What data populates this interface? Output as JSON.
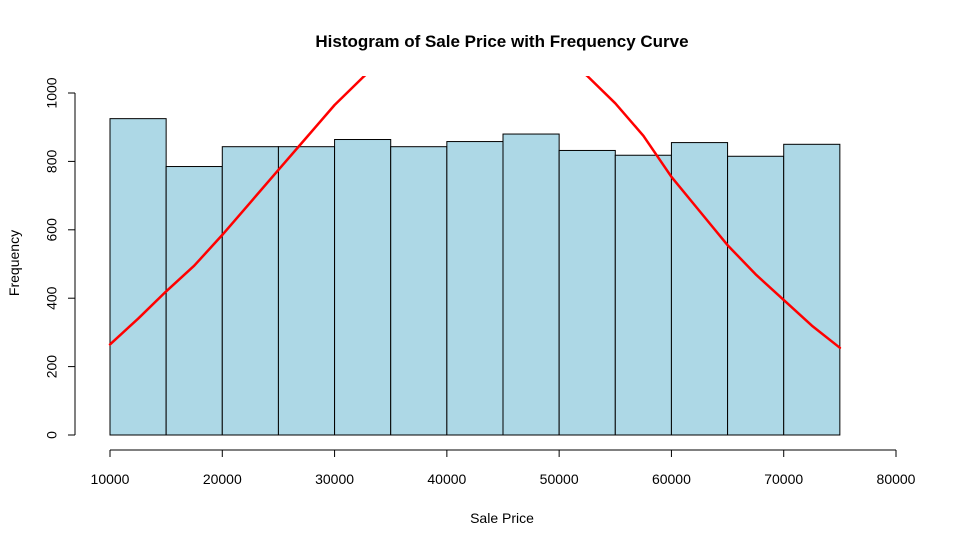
{
  "chart_data": {
    "type": "bar",
    "title": "Histogram of Sale Price with Frequency Curve",
    "xlabel": "Sale Price",
    "ylabel": "Frequency",
    "xlim": [
      10000,
      80000
    ],
    "ylim": [
      0,
      1000
    ],
    "x_ticks": [
      "10000",
      "20000",
      "30000",
      "40000",
      "50000",
      "60000",
      "70000",
      "80000"
    ],
    "y_ticks": [
      "0",
      "200",
      "400",
      "600",
      "800",
      "1000"
    ],
    "bins": [
      {
        "start": 10000,
        "end": 15000,
        "value": 925
      },
      {
        "start": 15000,
        "end": 20000,
        "value": 785
      },
      {
        "start": 20000,
        "end": 25000,
        "value": 843
      },
      {
        "start": 25000,
        "end": 30000,
        "value": 843
      },
      {
        "start": 30000,
        "end": 35000,
        "value": 864
      },
      {
        "start": 35000,
        "end": 40000,
        "value": 843
      },
      {
        "start": 40000,
        "end": 45000,
        "value": 858
      },
      {
        "start": 45000,
        "end": 50000,
        "value": 880
      },
      {
        "start": 50000,
        "end": 55000,
        "value": 832
      },
      {
        "start": 55000,
        "end": 60000,
        "value": 818
      },
      {
        "start": 60000,
        "end": 65000,
        "value": 855
      },
      {
        "start": 65000,
        "end": 70000,
        "value": 815
      },
      {
        "start": 70000,
        "end": 75000,
        "value": 850
      }
    ],
    "curve": {
      "x": [
        10000,
        12500,
        15000,
        17500,
        20000,
        22500,
        25000,
        27500,
        30000,
        32500,
        34000,
        51000,
        52500,
        55000,
        57500,
        60000,
        62500,
        65000,
        67500,
        70000,
        72500,
        75000
      ],
      "y": [
        265,
        340,
        420,
        495,
        585,
        680,
        775,
        870,
        965,
        1045,
        1090,
        1090,
        1050,
        970,
        875,
        755,
        655,
        555,
        470,
        395,
        320,
        255
      ]
    },
    "colors": {
      "bar_fill": "#add8e6",
      "bar_stroke": "#000000",
      "curve": "#ff0000"
    }
  }
}
